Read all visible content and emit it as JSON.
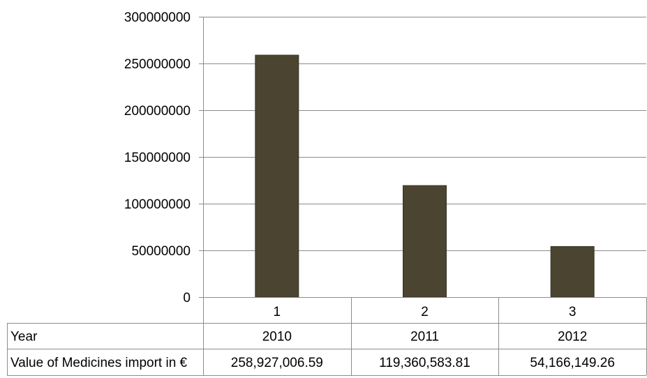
{
  "chart_data": {
    "type": "bar",
    "categories": [
      "1",
      "2",
      "3"
    ],
    "values": [
      258927006.59,
      119360583.81,
      54166149.26
    ],
    "ylim": [
      0,
      300000000
    ],
    "yticks": [
      0,
      50000000,
      100000000,
      150000000,
      200000000,
      250000000,
      300000000
    ],
    "ytick_labels": [
      "0",
      "50000000",
      "100000000",
      "150000000",
      "200000000",
      "250000000",
      "300000000"
    ],
    "grid": true,
    "bar_color": "#4a4430",
    "table": {
      "rows": [
        {
          "header": "Year",
          "cells": [
            "2010",
            "2011",
            "2012"
          ]
        },
        {
          "header": "Value of Medicines import in €",
          "cells": [
            "258,927,006.59",
            "119,360,583.81",
            "54,166,149.26"
          ]
        }
      ]
    }
  }
}
